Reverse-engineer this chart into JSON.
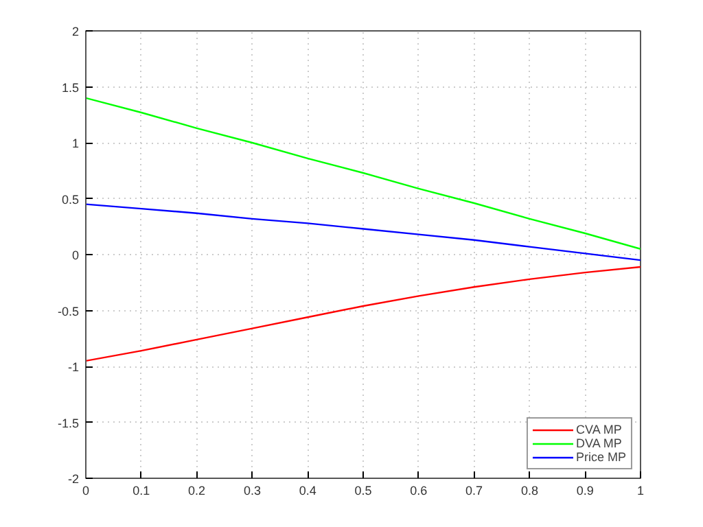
{
  "chart_data": {
    "type": "line",
    "x": [
      0,
      0.1,
      0.2,
      0.3,
      0.4,
      0.5,
      0.6,
      0.7,
      0.8,
      0.9,
      1
    ],
    "series": [
      {
        "name": "CVA MP",
        "color": "#ff0000",
        "values": [
          -0.95,
          -0.86,
          -0.76,
          -0.66,
          -0.56,
          -0.46,
          -0.37,
          -0.29,
          -0.22,
          -0.16,
          -0.11
        ]
      },
      {
        "name": "DVA MP",
        "color": "#00ff00",
        "values": [
          1.4,
          1.27,
          1.13,
          1.0,
          0.86,
          0.73,
          0.59,
          0.46,
          0.32,
          0.19,
          0.05
        ]
      },
      {
        "name": "Price MP",
        "color": "#0000ff",
        "values": [
          0.45,
          0.41,
          0.37,
          0.32,
          0.28,
          0.23,
          0.18,
          0.13,
          0.07,
          0.01,
          -0.05
        ]
      }
    ],
    "xlim": [
      0,
      1
    ],
    "xticks": [
      0,
      0.1,
      0.2,
      0.3,
      0.4,
      0.5,
      0.6,
      0.7,
      0.8,
      0.9,
      1
    ],
    "ylim": [
      -2,
      2
    ],
    "yticks": [
      -2,
      -1.5,
      -1,
      -0.5,
      0,
      0.5,
      1,
      1.5,
      2
    ],
    "grid": true,
    "legend": "bottom right",
    "line_style": "solid"
  }
}
